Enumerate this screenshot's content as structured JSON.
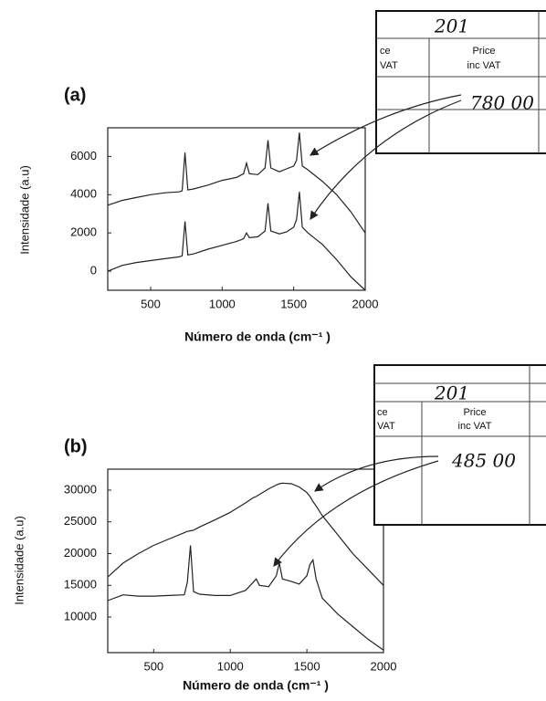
{
  "chart_data": [
    {
      "type": "line",
      "panel_label": "(a)",
      "xlabel": "Número de onda (cm⁻¹ )",
      "ylabel": "Intensidade (a.u)",
      "xlim": [
        200,
        2000
      ],
      "ylim": [
        -1000,
        7500
      ],
      "xticks": [
        500,
        1000,
        1500,
        2000
      ],
      "yticks": [
        0,
        2000,
        4000,
        6000
      ],
      "grid": false,
      "x": [
        200,
        300,
        400,
        500,
        600,
        700,
        720,
        740,
        760,
        800,
        900,
        1000,
        1100,
        1150,
        1170,
        1190,
        1250,
        1300,
        1320,
        1340,
        1400,
        1450,
        1500,
        1520,
        1540,
        1560,
        1600,
        1700,
        1800,
        1900,
        2000
      ],
      "series": [
        {
          "color": "#222222",
          "values": [
            3450,
            3700,
            3850,
            4000,
            4100,
            4150,
            4200,
            6200,
            4250,
            4300,
            4500,
            4750,
            4900,
            5100,
            5650,
            5100,
            5050,
            5400,
            6850,
            5400,
            5200,
            5350,
            5500,
            5800,
            7250,
            5500,
            5300,
            4700,
            4000,
            3100,
            2000
          ]
        },
        {
          "color": "#222222",
          "values": [
            0,
            300,
            450,
            550,
            650,
            750,
            800,
            2600,
            850,
            900,
            1150,
            1350,
            1550,
            1700,
            2000,
            1750,
            1800,
            2100,
            3550,
            2100,
            1950,
            2050,
            2300,
            2700,
            4150,
            2300,
            2000,
            1400,
            600,
            -300,
            -1000
          ]
        }
      ],
      "receipt": {
        "number": "201",
        "left_column": [
          "ce",
          "VAT"
        ],
        "header": [
          "Price",
          "inc VAT"
        ],
        "amount": "780 00"
      }
    },
    {
      "type": "line",
      "panel_label": "(b)",
      "xlabel": "Número de onda (cm⁻¹ )",
      "ylabel": "Intensidade (a.u)",
      "xlim": [
        200,
        2000
      ],
      "ylim": [
        4400,
        33300
      ],
      "xticks": [
        500,
        1000,
        1500,
        2000
      ],
      "yticks": [
        10000,
        15000,
        20000,
        25000,
        30000
      ],
      "grid": false,
      "x": [
        200,
        300,
        400,
        500,
        600,
        700,
        720,
        740,
        760,
        800,
        900,
        1000,
        1100,
        1150,
        1170,
        1190,
        1250,
        1300,
        1320,
        1340,
        1400,
        1450,
        1500,
        1520,
        1540,
        1560,
        1600,
        1700,
        1800,
        1900,
        2000
      ],
      "series": [
        {
          "color": "#222222",
          "values": [
            16300,
            18500,
            20000,
            21300,
            22300,
            23300,
            23500,
            23600,
            23700,
            24200,
            25300,
            26500,
            28000,
            28800,
            29000,
            29300,
            30200,
            30800,
            31000,
            31100,
            31000,
            30500,
            29600,
            29000,
            28200,
            27500,
            26000,
            23000,
            20000,
            17500,
            15000
          ]
        },
        {
          "color": "#222222",
          "values": [
            12600,
            13500,
            13300,
            13300,
            13400,
            13500,
            15500,
            21300,
            14000,
            13600,
            13400,
            13400,
            14200,
            15500,
            16000,
            15000,
            14800,
            16500,
            18500,
            16000,
            15600,
            15200,
            16500,
            18300,
            19000,
            16000,
            13000,
            10500,
            8500,
            6500,
            4800
          ]
        }
      ],
      "receipt": {
        "number": "201",
        "left_column": [
          "ce",
          "VAT"
        ],
        "header": [
          "Price",
          "inc VAT"
        ],
        "amount": "485 00"
      }
    }
  ]
}
